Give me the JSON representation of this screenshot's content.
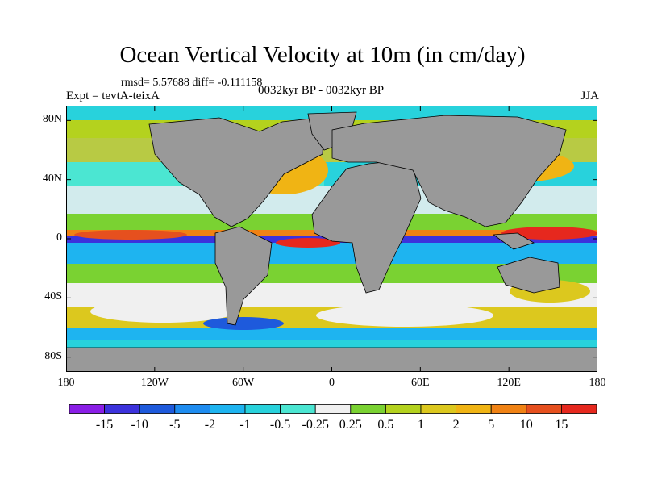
{
  "title": "Ocean Vertical Velocity at 10m (in cm/day)",
  "stats_label": "rmsd= 5.57688 diff= -0.111158",
  "experiment_label": "Expt = tevtA-teixA",
  "period_label": "0032kyr BP - 0032kyr BP",
  "season_label": "JJA",
  "map": {
    "projection": "cylindrical-equidistant",
    "lon_range": [
      -180,
      180
    ],
    "lat_range": [
      -90,
      90
    ],
    "land_color": "#999999",
    "lat_ticks": [
      {
        "value": 80,
        "label": "80N"
      },
      {
        "value": 40,
        "label": "40N"
      },
      {
        "value": 0,
        "label": "0"
      },
      {
        "value": -40,
        "label": "40S"
      },
      {
        "value": -80,
        "label": "80S"
      }
    ],
    "lon_ticks": [
      {
        "value": -180,
        "label": "180"
      },
      {
        "value": -120,
        "label": "120W"
      },
      {
        "value": -60,
        "label": "60W"
      },
      {
        "value": 0,
        "label": "0"
      },
      {
        "value": 60,
        "label": "60E"
      },
      {
        "value": 120,
        "label": "120E"
      },
      {
        "value": 180,
        "label": "180"
      }
    ]
  },
  "colorbar": {
    "levels": [
      "-15",
      "-10",
      "-5",
      "-2",
      "-1",
      "-0.5",
      "-0.25",
      "0.25",
      "0.5",
      "1",
      "2",
      "5",
      "10",
      "15"
    ],
    "colors": [
      "#8a1ee6",
      "#3c32dc",
      "#1e5adc",
      "#1e8cf0",
      "#1eb4f0",
      "#28d2dc",
      "#4be6d2",
      "#f0f0f0",
      "#7ad232",
      "#b4d21e",
      "#dcc81e",
      "#f0b414",
      "#f08214",
      "#e6501e",
      "#e6281e"
    ]
  }
}
